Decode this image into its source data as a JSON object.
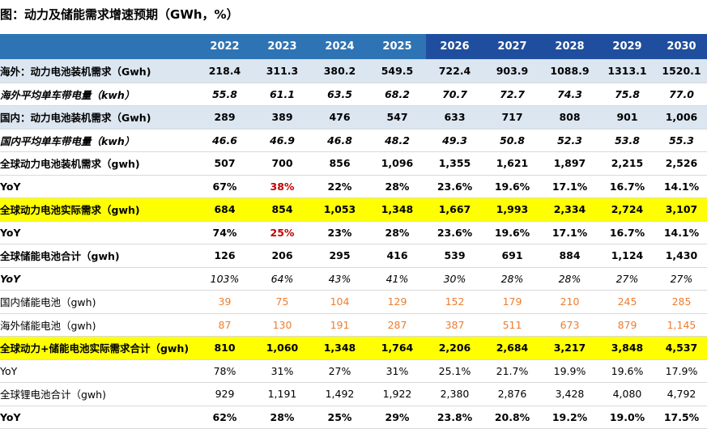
{
  "title": "图：动力及储能需求增速预期（GWh，%）",
  "years": [
    "2022",
    "2023",
    "2024",
    "2025",
    "2026",
    "2027",
    "2028",
    "2029",
    "2030"
  ],
  "rows": [
    {
      "label": "海外：动力电池装机需求（Gwh)",
      "values": [
        "218.4",
        "311.3",
        "380.2",
        "549.5",
        "722.4",
        "903.9",
        "1088.9",
        "1313.1",
        "1520.1"
      ]
    },
    {
      "label": "海外平均单车带电量（kwh）",
      "values": [
        "55.8",
        "61.1",
        "63.5",
        "68.2",
        "70.7",
        "72.7",
        "74.3",
        "75.8",
        "77.0"
      ]
    },
    {
      "label": "国内：动力电池装机需求（Gwh)",
      "values": [
        "289",
        "389",
        "476",
        "547",
        "633",
        "717",
        "808",
        "901",
        "1,006"
      ]
    },
    {
      "label": "国内平均单车带电量（kwh）",
      "values": [
        "46.6",
        "46.9",
        "46.8",
        "48.2",
        "49.3",
        "50.8",
        "52.3",
        "53.8",
        "55.3"
      ]
    },
    {
      "label": "全球动力电池装机需求（gwh)",
      "values": [
        "507",
        "700",
        "856",
        "1,096",
        "1,355",
        "1,621",
        "1,897",
        "2,215",
        "2,526"
      ]
    },
    {
      "label": "YoY",
      "values": [
        "67%",
        "38%",
        "22%",
        "28%",
        "23.6%",
        "19.6%",
        "17.1%",
        "16.7%",
        "14.1%"
      ]
    },
    {
      "label": "全球动力电池实际需求（gwh)",
      "values": [
        "684",
        "854",
        "1,053",
        "1,348",
        "1,667",
        "1,993",
        "2,334",
        "2,724",
        "3,107"
      ]
    },
    {
      "label": "YoY",
      "values": [
        "74%",
        "25%",
        "23%",
        "28%",
        "23.6%",
        "19.6%",
        "17.1%",
        "16.7%",
        "14.1%"
      ]
    },
    {
      "label": "全球储能电池合计（gwh)",
      "values": [
        "126",
        "206",
        "295",
        "416",
        "539",
        "691",
        "884",
        "1,124",
        "1,430"
      ]
    },
    {
      "label": "YoY",
      "values": [
        "103%",
        "64%",
        "43%",
        "41%",
        "30%",
        "28%",
        "28%",
        "27%",
        "27%"
      ]
    },
    {
      "label": "国内储能电池（gwh)",
      "values": [
        "39",
        "75",
        "104",
        "129",
        "152",
        "179",
        "210",
        "245",
        "285"
      ]
    },
    {
      "label": "海外储能电池（gwh)",
      "values": [
        "87",
        "130",
        "191",
        "287",
        "387",
        "511",
        "673",
        "879",
        "1,145"
      ]
    },
    {
      "label": "全球动力+储能电池实际需求合计（gwh)",
      "values": [
        "810",
        "1,060",
        "1,348",
        "1,764",
        "2,206",
        "2,684",
        "3,217",
        "3,848",
        "4,537"
      ]
    },
    {
      "label": "YoY",
      "values": [
        "78%",
        "31%",
        "27%",
        "31%",
        "25.1%",
        "21.7%",
        "19.9%",
        "19.6%",
        "17.9%"
      ]
    },
    {
      "label": "全球锂电池合计（gwh)",
      "values": [
        "929",
        "1,191",
        "1,492",
        "1,922",
        "2,380",
        "2,876",
        "3,428",
        "4,080",
        "4,792"
      ]
    },
    {
      "label": "YoY",
      "values": [
        "62%",
        "28%",
        "25%",
        "29%",
        "23.8%",
        "20.8%",
        "19.2%",
        "19.0%",
        "17.5%"
      ]
    }
  ],
  "colors": {
    "header_blue": "#2e74b5",
    "header_dark_blue": "#1f4e9e",
    "row_light_blue": "#dce6f1",
    "highlight_yellow": "#ffff00",
    "negative_red": "#c00000",
    "storage_orange": "#ed7d31"
  }
}
